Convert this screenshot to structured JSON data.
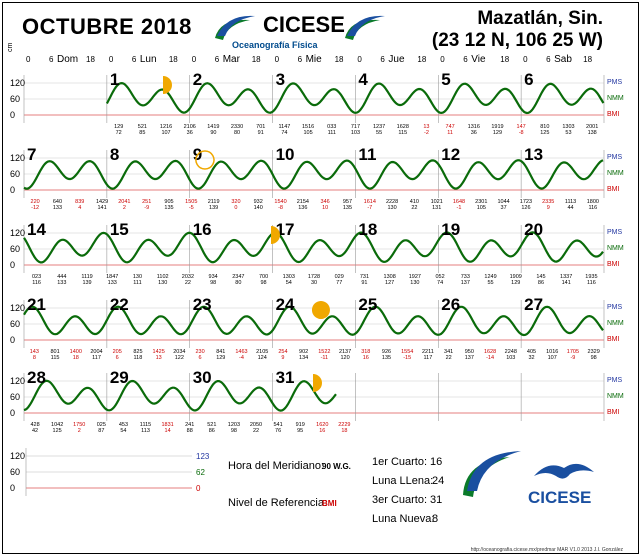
{
  "title": "OCTUBRE 2018",
  "org": "CICESE",
  "org_sub": "Oceanografía Física",
  "location": "Mazatlán, Sin.",
  "coords": "(23 12 N, 106 25 W)",
  "units_label": "cm",
  "header_hours": [
    "0",
    "6",
    "18",
    "0",
    "6",
    "18",
    "0",
    "6",
    "18",
    "0",
    "6",
    "18",
    "0",
    "6",
    "18",
    "0",
    "6",
    "18",
    "0",
    "6",
    "18"
  ],
  "weekdays": [
    "Dom",
    "Lun",
    "Mar",
    "Mie",
    "Jue",
    "Vie",
    "Sab"
  ],
  "yaxis": [
    "120",
    "60",
    "0"
  ],
  "right_labels": [
    "PMS",
    "NMM",
    "BMI"
  ],
  "rows": [
    {
      "days": [
        "1",
        "2",
        "3",
        "4",
        "5",
        "6"
      ],
      "start_col": 1,
      "times": [
        [
          "129",
          "72"
        ],
        [
          "521",
          "85"
        ],
        [
          "1216",
          "107"
        ],
        [
          "2106",
          "36"
        ],
        [
          "1419",
          "90"
        ],
        [
          "2330",
          "80"
        ],
        [
          "701",
          "91"
        ],
        [
          "1147",
          "74"
        ],
        [
          "1516",
          "105"
        ],
        [
          "033",
          "111"
        ],
        [
          "717",
          "103"
        ],
        [
          "1237",
          "55"
        ],
        [
          "1628",
          "115"
        ],
        [
          "13",
          "-2"
        ],
        [
          "747",
          "11"
        ],
        [
          "1316",
          "36"
        ],
        [
          "1919",
          "129"
        ],
        [
          "147",
          "-8"
        ],
        [
          "810",
          "125"
        ],
        [
          "1303",
          "53"
        ],
        [
          "2001",
          "138"
        ]
      ]
    },
    {
      "days": [
        "7",
        "8",
        "9",
        "10",
        "11",
        "12",
        "13"
      ],
      "start_col": 0,
      "times": [
        [
          "220",
          "-12"
        ],
        [
          "640",
          "133"
        ],
        [
          "839",
          "4"
        ],
        [
          "1429",
          "141"
        ],
        [
          "2041",
          "2"
        ],
        [
          "251",
          "-9"
        ],
        [
          "905",
          "135"
        ],
        [
          "1505",
          "-5"
        ],
        [
          "2119",
          "139"
        ],
        [
          "320",
          "0"
        ],
        [
          "932",
          "140"
        ],
        [
          "1540",
          "-8"
        ],
        [
          "2154",
          "136"
        ],
        [
          "346",
          "10"
        ],
        [
          "957",
          "135"
        ],
        [
          "1614",
          "-7"
        ],
        [
          "2228",
          "130"
        ],
        [
          "410",
          "22"
        ],
        [
          "1021",
          "131"
        ],
        [
          "1648",
          "-1"
        ],
        [
          "2301",
          "105"
        ],
        [
          "1044",
          "37"
        ],
        [
          "1723",
          "126"
        ],
        [
          "2335",
          "9"
        ],
        [
          "1113",
          "44"
        ],
        [
          "1800",
          "116"
        ]
      ]
    },
    {
      "days": [
        "14",
        "15",
        "16",
        "17",
        "18",
        "19",
        "20"
      ],
      "start_col": 0,
      "times": [
        [
          "023",
          "116"
        ],
        [
          "444",
          "133"
        ],
        [
          "1119",
          "139"
        ],
        [
          "1847",
          "133"
        ],
        [
          "130",
          "111"
        ],
        [
          "1102",
          "130"
        ],
        [
          "2032",
          "22"
        ],
        [
          "934",
          "98"
        ],
        [
          "2347",
          "80"
        ],
        [
          "700",
          "98"
        ],
        [
          "1303",
          "54"
        ],
        [
          "1728",
          "30"
        ],
        [
          "029",
          "77"
        ],
        [
          "731",
          "91"
        ],
        [
          "1308",
          "127"
        ],
        [
          "1927",
          "130"
        ],
        [
          "052",
          "74"
        ],
        [
          "733",
          "137"
        ],
        [
          "1249",
          "55"
        ],
        [
          "1909",
          "129"
        ],
        [
          "145",
          "86"
        ],
        [
          "1337",
          "141"
        ],
        [
          "1935",
          "116"
        ]
      ]
    },
    {
      "days": [
        "21",
        "22",
        "23",
        "24",
        "25",
        "26",
        "27"
      ],
      "start_col": 0,
      "times": [
        [
          "143",
          "8"
        ],
        [
          "801",
          "115"
        ],
        [
          "1400",
          "18"
        ],
        [
          "2004",
          "117"
        ],
        [
          "205",
          "6"
        ],
        [
          "825",
          "118"
        ],
        [
          "1425",
          "13"
        ],
        [
          "2034",
          "122"
        ],
        [
          "230",
          "6"
        ],
        [
          "841",
          "129"
        ],
        [
          "1463",
          "-4"
        ],
        [
          "2105",
          "124"
        ],
        [
          "254",
          "9"
        ],
        [
          "902",
          "134"
        ],
        [
          "1522",
          "-11"
        ],
        [
          "2137",
          "120"
        ],
        [
          "318",
          "16"
        ],
        [
          "926",
          "135"
        ],
        [
          "1554",
          "-15"
        ],
        [
          "2211",
          "117"
        ],
        [
          "341",
          "22"
        ],
        [
          "950",
          "137"
        ],
        [
          "1628",
          "-14"
        ],
        [
          "2248",
          "103"
        ],
        [
          "405",
          "32"
        ],
        [
          "1016",
          "107"
        ],
        [
          "1705",
          "-9"
        ],
        [
          "2329",
          "98"
        ]
      ]
    },
    {
      "days": [
        "28",
        "29",
        "30",
        "31"
      ],
      "start_col": 0,
      "times": [
        [
          "428",
          "42"
        ],
        [
          "1042",
          "125"
        ],
        [
          "1750",
          "2"
        ],
        [
          "025",
          "87"
        ],
        [
          "453",
          "54"
        ],
        [
          "1115",
          "113"
        ],
        [
          "1831",
          "14"
        ],
        [
          "241",
          "88"
        ],
        [
          "521",
          "86"
        ],
        [
          "1203",
          "98"
        ],
        [
          "2050",
          "22"
        ],
        [
          "541",
          "76"
        ],
        [
          "919",
          "95"
        ],
        [
          "1620",
          "16"
        ],
        [
          "2229",
          "18"
        ]
      ]
    }
  ],
  "legend": {
    "hora_meridiano_label": "Hora del Meridiano:",
    "hora_meridiano_value": "90 W.G.",
    "nivel_label": "Nivel de Referencia:",
    "nivel_value": "BMI",
    "cuarto1_label": "1er Cuarto:",
    "cuarto1_value": "16",
    "llena_label": "Luna LLena:",
    "llena_value": "24",
    "cuarto3_label": "3er Cuarto:",
    "cuarto3_value": "31",
    "nueva_label": "Luna Nueva:",
    "nueva_value": "8",
    "mini_yaxis": [
      "120",
      "60",
      "0"
    ],
    "mini_right": [
      "123",
      "62",
      "0"
    ]
  },
  "footer": "http://oceanografia.cicese.mx/predmar  MAR V1.0 2013  J.I. González",
  "colors": {
    "tide": "#0a6b0a",
    "moon": "#f0a800",
    "grid": "#9a9a9a",
    "bmi": "#c00"
  }
}
